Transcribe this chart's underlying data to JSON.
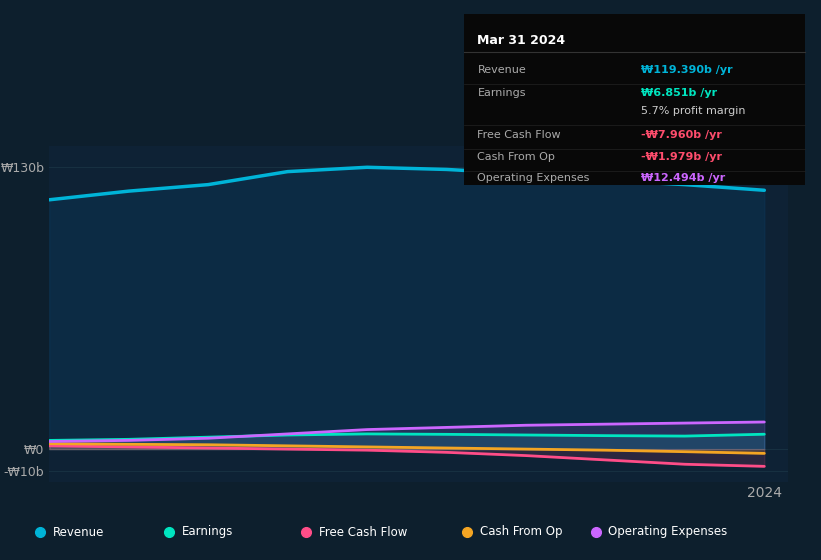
{
  "bg_color": "#0d1f2d",
  "plot_bg_color": "#0e2235",
  "tooltip": {
    "title": "Mar 31 2024",
    "rows": [
      {
        "label": "Revenue",
        "value": "₩119.390b /yr",
        "value_color": "#00b4d8"
      },
      {
        "label": "Earnings",
        "value": "₩6.851b /yr",
        "value_color": "#00e5c0"
      },
      {
        "label": "",
        "value": "5.7% profit margin",
        "value_color": "#cccccc"
      },
      {
        "label": "Free Cash Flow",
        "value": "-₩7.960b /yr",
        "value_color": "#ff4d6d"
      },
      {
        "label": "Cash From Op",
        "value": "-₩1.979b /yr",
        "value_color": "#ff4d6d"
      },
      {
        "label": "Operating Expenses",
        "value": "₩12.494b /yr",
        "value_color": "#cc66ff"
      }
    ]
  },
  "ylim": [
    -15,
    140
  ],
  "yticks": [
    130,
    0,
    -10
  ],
  "ytick_labels": [
    "₩130b",
    "₩0",
    "-₩10b"
  ],
  "xtick_labels": [
    "2024"
  ],
  "legend": [
    {
      "label": "Revenue",
      "color": "#00b4d8"
    },
    {
      "label": "Earnings",
      "color": "#00e5c0"
    },
    {
      "label": "Free Cash Flow",
      "color": "#ff4d88"
    },
    {
      "label": "Cash From Op",
      "color": "#f4a523"
    },
    {
      "label": "Operating Expenses",
      "color": "#cc66ff"
    }
  ],
  "revenue": {
    "x": [
      2015,
      2016,
      2017,
      2018,
      2019,
      2020,
      2021,
      2022,
      2023,
      2024
    ],
    "y": [
      115,
      119,
      122,
      128,
      130,
      129,
      127,
      124,
      122,
      119.39
    ],
    "color": "#00b4d8",
    "linewidth": 2.5
  },
  "earnings": {
    "x": [
      2015,
      2016,
      2017,
      2018,
      2019,
      2020,
      2021,
      2022,
      2023,
      2024
    ],
    "y": [
      4.0,
      4.5,
      5.5,
      6.5,
      7.0,
      6.8,
      6.5,
      6.2,
      6.0,
      6.851
    ],
    "color": "#00e5c0",
    "linewidth": 2.0
  },
  "free_cash_flow": {
    "x": [
      2015,
      2016,
      2017,
      2018,
      2019,
      2020,
      2021,
      2022,
      2023,
      2024
    ],
    "y": [
      1.5,
      1.0,
      0.5,
      0.0,
      -0.5,
      -1.5,
      -3.0,
      -5.0,
      -7.0,
      -7.96
    ],
    "color": "#ff4d88",
    "linewidth": 2.0
  },
  "cash_from_op": {
    "x": [
      2015,
      2016,
      2017,
      2018,
      2019,
      2020,
      2021,
      2022,
      2023,
      2024
    ],
    "y": [
      2.5,
      2.2,
      2.0,
      1.5,
      1.0,
      0.5,
      0.0,
      -0.5,
      -1.2,
      -1.979
    ],
    "color": "#f4a523",
    "linewidth": 2.0
  },
  "operating_expenses": {
    "x": [
      2015,
      2016,
      2017,
      2018,
      2019,
      2020,
      2021,
      2022,
      2023,
      2024
    ],
    "y": [
      3.5,
      4.0,
      5.0,
      7.0,
      9.0,
      10.0,
      11.0,
      11.5,
      12.0,
      12.494
    ],
    "color": "#cc66ff",
    "linewidth": 2.0
  },
  "grid_color": "#1e3a4a",
  "grid_alpha": 0.6,
  "text_color": "#aaaaaa",
  "tick_color": "#aaaaaa"
}
